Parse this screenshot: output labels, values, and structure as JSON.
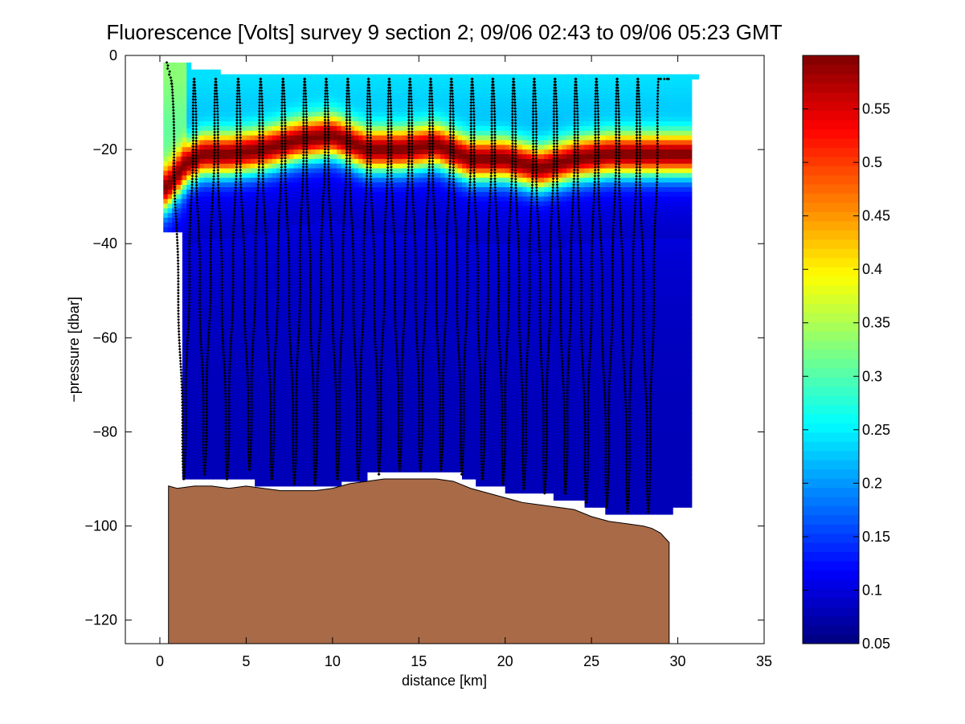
{
  "chart_data": {
    "type": "heatmap",
    "title": "Fluorescence [Volts] survey 9 section 2; 09/06 02:43 to 09/06 05:23 GMT",
    "xlabel": "distance [km]",
    "ylabel": "−pressure [dbar]",
    "xlim": [
      -2,
      35
    ],
    "ylim": [
      -125,
      0
    ],
    "x_ticks": [
      0,
      5,
      10,
      15,
      20,
      25,
      30,
      35
    ],
    "y_ticks": [
      0,
      -20,
      -40,
      -60,
      -80,
      -100,
      -120
    ],
    "x_tick_labels": [
      "0",
      "5",
      "10",
      "15",
      "20",
      "25",
      "30",
      "35"
    ],
    "y_tick_labels": [
      "0",
      "−20",
      "−40",
      "−60",
      "−80",
      "−100",
      "−120"
    ],
    "colorbar": {
      "colormap": "jet",
      "range": [
        0.05,
        0.6
      ],
      "ticks": [
        0.05,
        0.1,
        0.15,
        0.2,
        0.25,
        0.3,
        0.35,
        0.4,
        0.45,
        0.5,
        0.55
      ],
      "tick_labels": [
        "0.05",
        "0.1",
        "0.15",
        "0.2",
        "0.25",
        "0.3",
        "0.35",
        "0.4",
        "0.45",
        "0.5",
        "0.55"
      ]
    },
    "field": {
      "surface_value": 0.24,
      "chl_max_value": 0.6,
      "chl_max_depth_profile": {
        "x": [
          0.4,
          1.5,
          2.5,
          4,
          6,
          8,
          10,
          12,
          14,
          16,
          18,
          20,
          22,
          24,
          26,
          28,
          30
        ],
        "depth": [
          -28,
          -23,
          -21,
          -21,
          -20,
          -18,
          -17,
          -20,
          -20,
          -19,
          -22,
          -22,
          -24,
          -22,
          -21,
          -21,
          -21
        ]
      },
      "deep_value": 0.08
    },
    "data_extent": [
      {
        "x0": 0.2,
        "x1": 1.3,
        "top": -1.5,
        "bottom": -37.5
      },
      {
        "x0": 1.3,
        "x1": 1.8,
        "top": -1.5,
        "bottom": -90
      },
      {
        "x0": 1.8,
        "x1": 3.5,
        "top": -3,
        "bottom": -90
      },
      {
        "x0": 3.5,
        "x1": 5.0,
        "top": -4,
        "bottom": -90
      },
      {
        "x0": 5.0,
        "x1": 5.5,
        "top": -4,
        "bottom": -90
      },
      {
        "x0": 5.5,
        "x1": 10.5,
        "top": -4,
        "bottom": -91.5
      },
      {
        "x0": 10.5,
        "x1": 12.0,
        "top": -4,
        "bottom": -90.5
      },
      {
        "x0": 12.0,
        "x1": 17.5,
        "top": -4,
        "bottom": -88.5
      },
      {
        "x0": 17.5,
        "x1": 18.3,
        "top": -4,
        "bottom": -90
      },
      {
        "x0": 18.3,
        "x1": 20.0,
        "top": -4,
        "bottom": -91.5
      },
      {
        "x0": 20.0,
        "x1": 22.8,
        "top": -4,
        "bottom": -93
      },
      {
        "x0": 22.8,
        "x1": 24.6,
        "top": -4,
        "bottom": -94.5
      },
      {
        "x0": 24.6,
        "x1": 25.8,
        "top": -4,
        "bottom": -96
      },
      {
        "x0": 25.8,
        "x1": 29.7,
        "top": -4,
        "bottom": -97.5
      },
      {
        "x0": 29.7,
        "x1": 30.8,
        "top": -4,
        "bottom": -96
      },
      {
        "x0": 30.8,
        "x1": 31.2,
        "top": -4,
        "bottom": -5
      }
    ],
    "profiles": {
      "x_positions": [
        0.4,
        1.4,
        2.6,
        3.9,
        5.2,
        6.5,
        7.8,
        9.0,
        10.3,
        11.5,
        12.7,
        13.9,
        15.1,
        16.3,
        17.5,
        18.7,
        19.9,
        21.1,
        22.3,
        23.5,
        24.7,
        25.9,
        27.1,
        28.3,
        29.5
      ],
      "bottom_depths": [
        -5,
        -90,
        -89,
        -90,
        -88,
        -90,
        -91,
        -91,
        -90,
        -90,
        -89,
        -88,
        -88,
        -88,
        -89,
        -90,
        -91,
        -92,
        -93,
        -93,
        -95,
        -96,
        -97,
        -97,
        -5
      ]
    },
    "bathymetry": {
      "color": "#a96a47",
      "x": [
        0.5,
        1.0,
        2.0,
        3.0,
        4.0,
        5.0,
        6.0,
        7.0,
        8.0,
        9.0,
        10.0,
        11.0,
        12.0,
        13.0,
        14.0,
        15.0,
        16.0,
        17.0,
        18.0,
        19.0,
        20.0,
        21.0,
        22.0,
        23.0,
        24.0,
        25.0,
        26.0,
        27.0,
        28.0,
        28.5,
        29.0,
        29.5
      ],
      "depth": [
        -91.5,
        -92,
        -91.5,
        -91.5,
        -92,
        -91.5,
        -92,
        -92.5,
        -92.5,
        -92.5,
        -92,
        -91,
        -90.5,
        -90,
        -90,
        -90,
        -90,
        -90.5,
        -92,
        -93,
        -94,
        -95,
        -95.5,
        -96,
        -96.5,
        -98,
        -99,
        -99.5,
        -100,
        -100.5,
        -101.5,
        -103.5
      ]
    }
  }
}
